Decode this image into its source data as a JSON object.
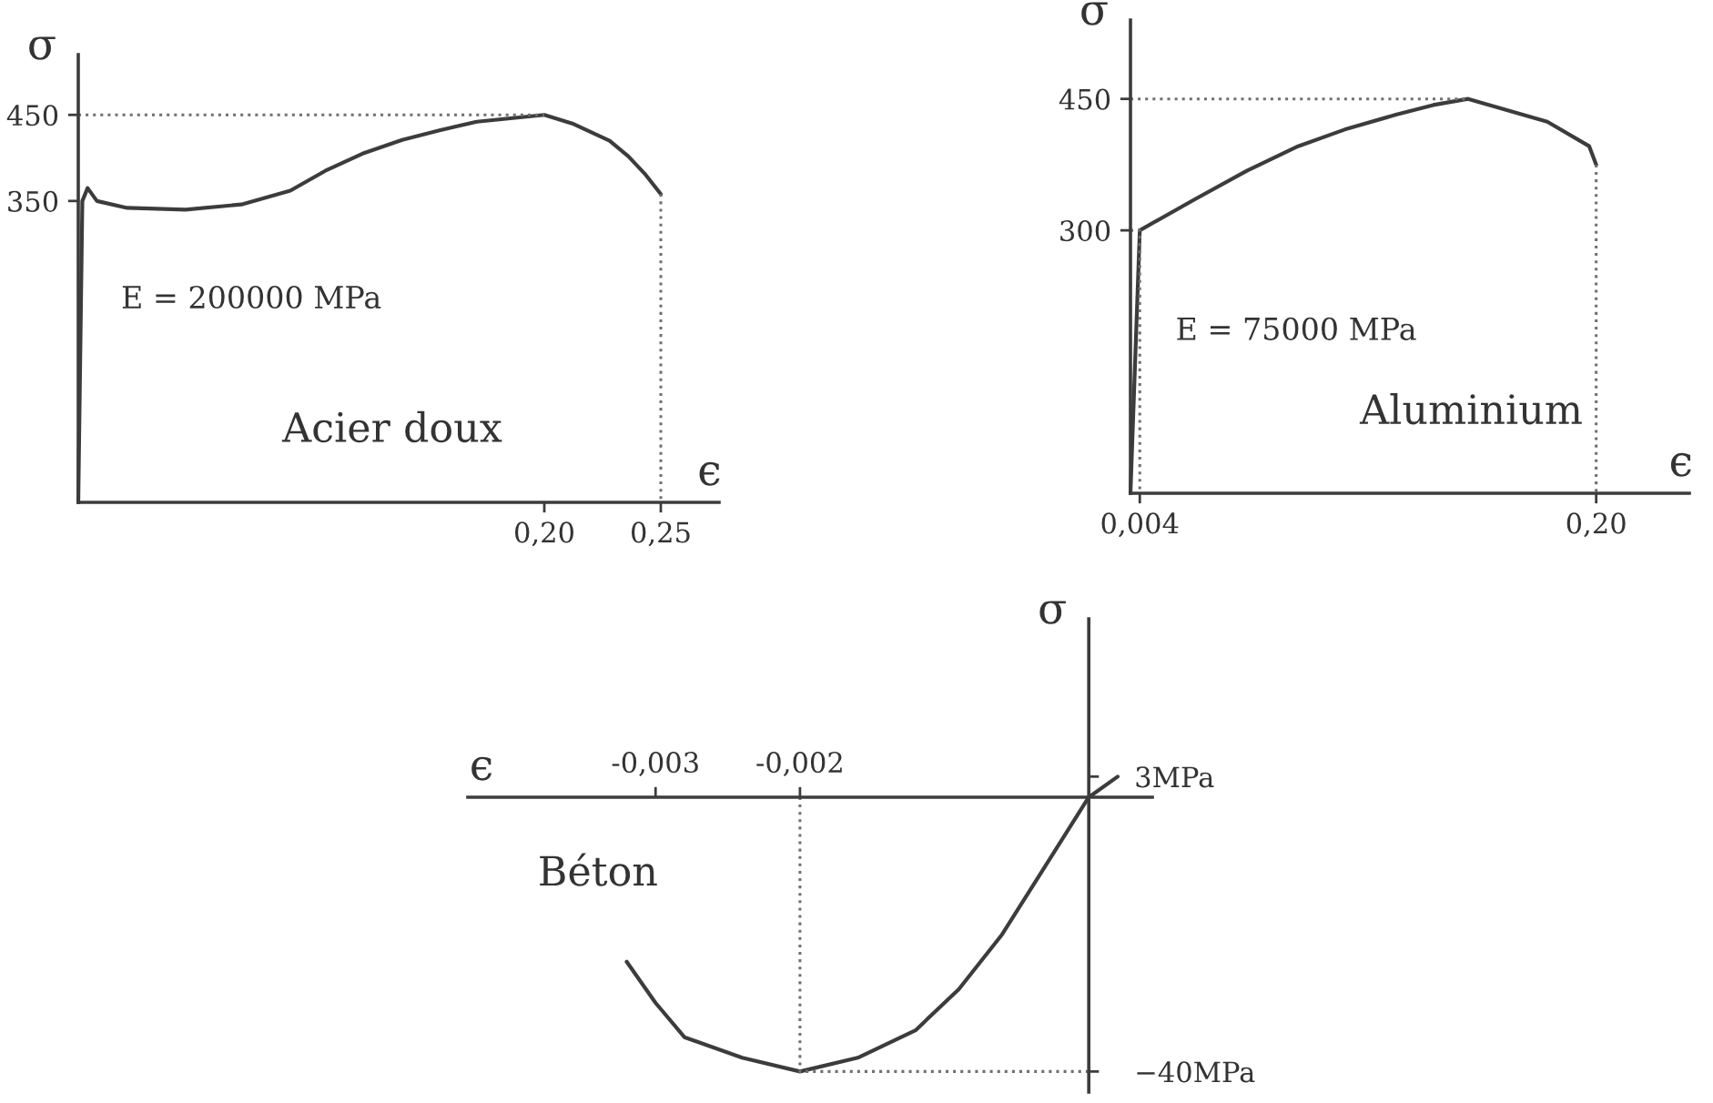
{
  "chart_data": [
    {
      "type": "line",
      "title": "Acier doux",
      "xlabel": "ϵ",
      "ylabel": "σ",
      "xlim": [
        0,
        0.275
      ],
      "ylim": [
        0,
        520
      ],
      "xticks": [
        {
          "value": 0.2,
          "label": "0,20"
        },
        {
          "value": 0.25,
          "label": "0,25"
        }
      ],
      "yticks": [
        350,
        450
      ],
      "series": [
        {
          "color": "#3c3c3c",
          "x": [
            0,
            0.00175,
            0.004,
            0.008,
            0.021,
            0.046,
            0.07,
            0.091,
            0.106,
            0.122,
            0.139,
            0.155,
            0.171,
            0.2,
            0.212,
            0.228,
            0.236,
            0.243,
            0.25
          ],
          "values": [
            0,
            350,
            365,
            350,
            342,
            340,
            346,
            362,
            385,
            405,
            421,
            432,
            442,
            450,
            440,
            420,
            402,
            382,
            358
          ]
        },
        {
          "color": "#707070",
          "line_style": "dotted",
          "x": [
            0,
            0.2
          ],
          "values": [
            450,
            450
          ]
        },
        {
          "color": "#707070",
          "line_style": "dotted",
          "x": [
            0.25,
            0.25
          ],
          "values": [
            358,
            0
          ]
        }
      ],
      "annotations": [
        {
          "text": "E = 200000 MPa",
          "x": 0.001,
          "y": 200
        }
      ]
    },
    {
      "type": "line",
      "title": "Aluminium",
      "xlabel": "ϵ",
      "ylabel": "σ",
      "xlim": [
        0,
        0.24
      ],
      "ylim": [
        0,
        540
      ],
      "xticks": [
        {
          "value": 0.004,
          "label": "0,004"
        },
        {
          "value": 0.2,
          "label": "0,20"
        }
      ],
      "yticks": [
        300,
        450
      ],
      "series": [
        {
          "color": "#3c3c3c",
          "x": [
            0,
            0.004,
            0.028,
            0.05,
            0.072,
            0.092,
            0.114,
            0.13,
            0.145,
            0.179,
            0.197,
            0.2
          ],
          "values": [
            0,
            300,
            336,
            368,
            396,
            415,
            432,
            443,
            450,
            424,
            396,
            375
          ]
        },
        {
          "color": "#707070",
          "line_style": "dotted",
          "x": [
            0,
            0.145
          ],
          "values": [
            450,
            450
          ]
        },
        {
          "color": "#707070",
          "line_style": "dotted",
          "x": [
            0,
            0.004,
            0.004
          ],
          "values": [
            300,
            300,
            0
          ]
        },
        {
          "color": "#707070",
          "line_style": "dotted",
          "x": [
            0.2,
            0.2
          ],
          "values": [
            375,
            0
          ]
        }
      ],
      "annotations": [
        {
          "text": "E = 75000 MPa",
          "x": 0.002,
          "y": 150
        }
      ]
    },
    {
      "type": "line",
      "title": "Béton",
      "xlabel": "ϵ",
      "ylabel": "σ",
      "xlim": [
        -0.0043,
        0.00044
      ],
      "ylim": [
        -43,
        26
      ],
      "xticks": [
        {
          "value": -0.003,
          "label": "-0,003"
        },
        {
          "value": -0.002,
          "label": "-0,002"
        }
      ],
      "yticks": [
        {
          "value": 3,
          "label": "3MPa"
        },
        {
          "value": -40,
          "label": "−40MPa"
        }
      ],
      "series": [
        {
          "color": "#3c3c3c",
          "x": [
            0.0002,
            0,
            -0.0003,
            -0.0006,
            -0.0009,
            -0.0012,
            -0.0016,
            -0.002,
            -0.0024,
            -0.0028,
            -0.003,
            -0.0032
          ],
          "values": [
            3,
            0,
            -10,
            -20,
            -28,
            -34,
            -38,
            -40,
            -38,
            -35,
            -30,
            -24
          ]
        },
        {
          "color": "#707070",
          "line_style": "dotted",
          "x": [
            -0.002,
            -0.002,
            0
          ],
          "values": [
            0,
            -40,
            -40
          ]
        }
      ]
    }
  ]
}
